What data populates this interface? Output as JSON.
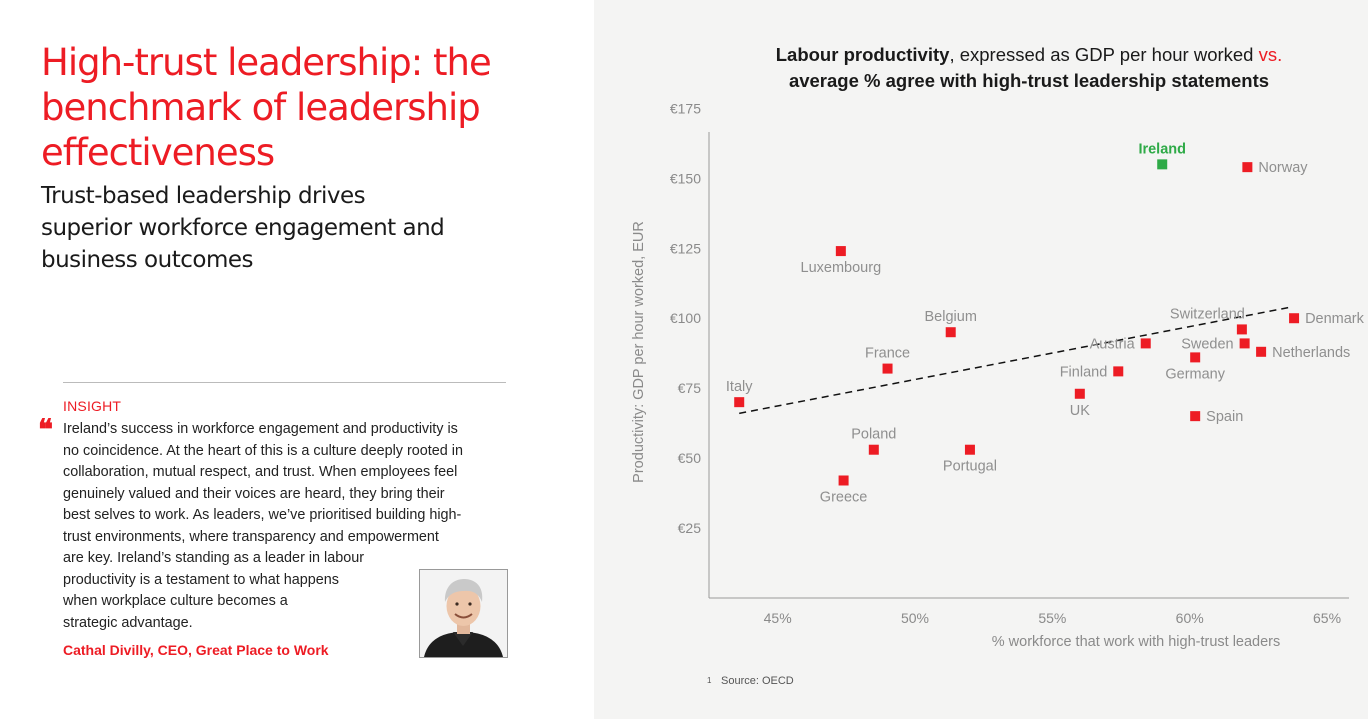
{
  "left": {
    "title": "High-trust leadership: the benchmark of leadership effectiveness",
    "subtitle": "Trust-based leadership drives superior workforce engagement and business outcomes",
    "insight_label": "INSIGHT",
    "quote_mark": "❝",
    "quote_lines": [
      "Ireland’s success in workforce engagement and productivity is",
      "no coincidence. At the heart of this is a culture deeply rooted in",
      "collaboration, mutual respect, and trust. When employees feel",
      "genuinely valued and their voices are heard, they bring their",
      "best selves to work. As leaders, we’ve prioritised building high-",
      "trust environments, where transparency and empowerment",
      "are key. Ireland’s standing as a leader in labour",
      "productivity is a testament to what happens",
      "when workplace culture becomes a",
      "strategic advantage."
    ],
    "attribution": "Cathal Divilly, CEO, Great Place to Work"
  },
  "chart_title": {
    "bold_part": "Labour productivity",
    "regular_part": ", expressed as GDP per hour worked ",
    "red_part": "vs.",
    "line2": "average % agree with high-trust leadership statements"
  },
  "footnote": {
    "mark": "1",
    "text": "Source: OECD"
  },
  "colors": {
    "accent_red": "#ed1c24",
    "highlight_green": "#2eaa47",
    "panel_bg": "#f4f4f3",
    "axis_gray": "#8a8a8a"
  },
  "chart_data": {
    "type": "scatter",
    "xlabel": "% workforce that work with high-trust leaders",
    "ylabel": "Productivity: GDP per hour worked, EUR",
    "xlim": [
      42.5,
      65.8
    ],
    "ylim": [
      0,
      178
    ],
    "x_ticks": [
      45,
      50,
      55,
      60,
      65
    ],
    "x_tick_labels": [
      "45%",
      "50%",
      "55%",
      "60%",
      "65%"
    ],
    "y_ticks": [
      25,
      50,
      75,
      100,
      125,
      150,
      175
    ],
    "y_tick_labels": [
      "€25",
      "€50",
      "€75",
      "€100",
      "€125",
      "€150",
      "€175"
    ],
    "grid": false,
    "points": [
      {
        "label": "Ireland",
        "x": 59.0,
        "y": 155,
        "highlight": true,
        "label_pos": "top"
      },
      {
        "label": "Norway",
        "x": 62.1,
        "y": 154,
        "highlight": false,
        "label_pos": "right"
      },
      {
        "label": "Luxembourg",
        "x": 47.3,
        "y": 124,
        "highlight": false,
        "label_pos": "bottom"
      },
      {
        "label": "Belgium",
        "x": 51.3,
        "y": 95,
        "highlight": false,
        "label_pos": "top"
      },
      {
        "label": "France",
        "x": 49.0,
        "y": 82,
        "highlight": false,
        "label_pos": "top"
      },
      {
        "label": "Italy",
        "x": 43.6,
        "y": 70,
        "highlight": false,
        "label_pos": "top"
      },
      {
        "label": "Poland",
        "x": 48.5,
        "y": 53,
        "highlight": false,
        "label_pos": "top"
      },
      {
        "label": "Greece",
        "x": 47.4,
        "y": 42,
        "highlight": false,
        "label_pos": "bottom"
      },
      {
        "label": "Portugal",
        "x": 52.0,
        "y": 53,
        "highlight": false,
        "label_pos": "bottom"
      },
      {
        "label": "Switzerland",
        "x": 61.9,
        "y": 96,
        "highlight": false,
        "label_pos": "top-left"
      },
      {
        "label": "Denmark",
        "x": 63.8,
        "y": 100,
        "highlight": false,
        "label_pos": "right"
      },
      {
        "label": "Austria",
        "x": 58.4,
        "y": 91,
        "highlight": false,
        "label_pos": "left"
      },
      {
        "label": "Sweden",
        "x": 62.0,
        "y": 91,
        "highlight": false,
        "label_pos": "left"
      },
      {
        "label": "Netherlands",
        "x": 62.6,
        "y": 88,
        "highlight": false,
        "label_pos": "right"
      },
      {
        "label": "Germany",
        "x": 60.2,
        "y": 86,
        "highlight": false,
        "label_pos": "bottom"
      },
      {
        "label": "Finland",
        "x": 57.4,
        "y": 81,
        "highlight": false,
        "label_pos": "left"
      },
      {
        "label": "UK",
        "x": 56.0,
        "y": 73,
        "highlight": false,
        "label_pos": "bottom"
      },
      {
        "label": "Spain",
        "x": 60.2,
        "y": 65,
        "highlight": false,
        "label_pos": "right"
      }
    ],
    "trendline": {
      "x": [
        43.6,
        63.7
      ],
      "y": [
        66,
        104
      ],
      "style": "dashed"
    }
  }
}
